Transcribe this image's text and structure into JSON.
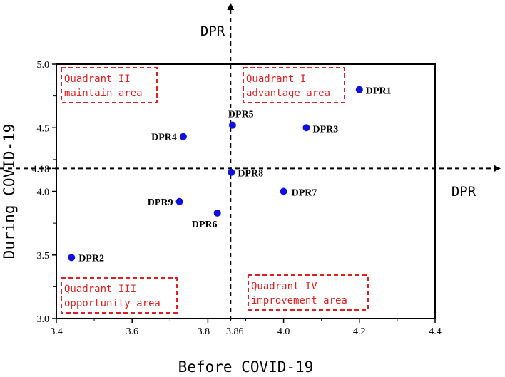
{
  "chart_data": {
    "type": "scatter",
    "xlabel": "Before COVID-19",
    "ylabel": "During COVID-19",
    "xlim": [
      3.4,
      4.4
    ],
    "ylim": [
      3.0,
      5.0
    ],
    "xticks": [
      "3.4",
      "3.6",
      "3.8",
      "3.86",
      "4.0",
      "4.2",
      "4.4"
    ],
    "yticks": [
      "3.0",
      "3.5",
      "4.0",
      "4.18",
      "4.5",
      "5.0"
    ],
    "x_divider": 3.86,
    "y_divider": 4.18,
    "axis_arrow_x_label": "DPR",
    "axis_arrow_y_label": "DPR",
    "points": [
      {
        "label": "DPR1",
        "x": 4.2,
        "y": 4.8
      },
      {
        "label": "DPR2",
        "x": 3.44,
        "y": 3.48
      },
      {
        "label": "DPR3",
        "x": 4.06,
        "y": 4.5
      },
      {
        "label": "DPR4",
        "x": 3.735,
        "y": 4.43
      },
      {
        "label": "DPR5",
        "x": 3.865,
        "y": 4.52
      },
      {
        "label": "DPR6",
        "x": 3.825,
        "y": 3.83
      },
      {
        "label": "DPR7",
        "x": 4.0,
        "y": 4.0
      },
      {
        "label": "DPR8",
        "x": 3.862,
        "y": 4.15
      },
      {
        "label": "DPR9",
        "x": 3.725,
        "y": 3.92
      }
    ],
    "quadrants": [
      {
        "name": "Quadrant I",
        "desc": "advantage area"
      },
      {
        "name": "Quadrant II",
        "desc": "maintain area"
      },
      {
        "name": "Quadrant III",
        "desc": "opportunity area"
      },
      {
        "name": "Quadrant IV",
        "desc": "improvement area"
      }
    ],
    "point_color": "#1010e0",
    "quadrant_color": "#e02020",
    "grid": false
  }
}
